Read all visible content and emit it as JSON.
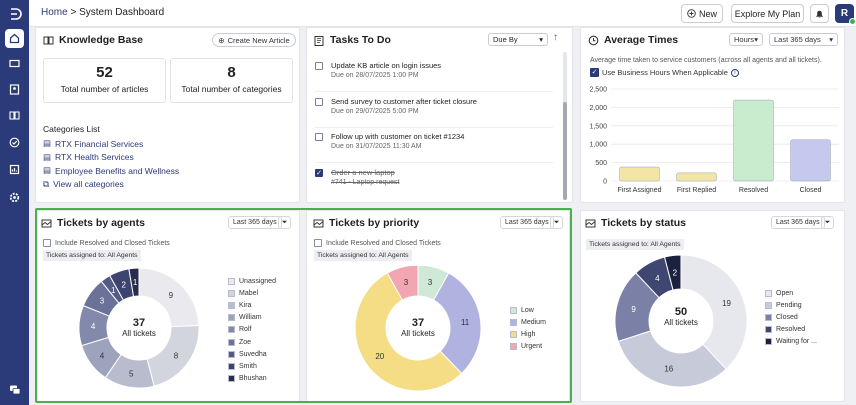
{
  "breadcrumb": {
    "home": "Home",
    "sep": " > ",
    "current": "System Dashboard"
  },
  "header": {
    "new_label": "New",
    "plan_label": "Explore My Plan",
    "avatar_initial": "R"
  },
  "sidebar": {
    "icons": [
      "logo-icon",
      "home-icon",
      "tickets-icon",
      "contacts-icon",
      "knowledge-base-icon",
      "tasks-icon",
      "reports-icon",
      "settings-icon",
      "chat-icon"
    ]
  },
  "knowledge_base": {
    "title": "Knowledge Base",
    "create_label": "Create New Article",
    "articles_count": "52",
    "articles_label": "Total number of articles",
    "categories_count": "8",
    "categories_label": "Total number of categories",
    "categories_heading": "Categories List",
    "categories": [
      "RTX Financial Services",
      "RTX Health Services",
      "Employee Benefits and Wellness"
    ],
    "view_all": "View all categories"
  },
  "tasks": {
    "title": "Tasks To Do",
    "sort_label": "Due By",
    "items": [
      {
        "title": "Update KB article on login issues",
        "due": "Due on 28/07/2025 1:00 PM",
        "done": false
      },
      {
        "title": "Send survey to customer after ticket closure",
        "due": "Due on 29/07/2025 5:00 PM",
        "done": false
      },
      {
        "title": "Follow up with customer on ticket #1234",
        "due": "Due on 31/07/2025 11:30 AM",
        "done": false
      },
      {
        "title": "Order a new laptop",
        "due": "#741 - Laptop request",
        "done": true
      }
    ]
  },
  "average_times": {
    "title": "Average Times",
    "unit_label": "Hours",
    "range_label": "Last 365 days",
    "description": "Average time taken to service customers (across all agents and all tickets).",
    "business_hours_label": "Use Business Hours When Applicable",
    "info_glyph": "i"
  },
  "tickets_by_agents": {
    "title": "Tickets by agents",
    "range_label": "Last 365 days",
    "include_label": "Include Resolved and Closed Tickets",
    "assigned_label": "Tickets assigned to: All Agents",
    "total": "37",
    "total_label": "All tickets",
    "legend": [
      "Unassigned",
      "Mabel",
      "Kira",
      "William",
      "Rolf",
      "Zoe",
      "Suvedha",
      "Smith",
      "Bhushan"
    ]
  },
  "tickets_by_priority": {
    "title": "Tickets by priority",
    "range_label": "Last 365 days",
    "include_label": "Include Resolved and Closed Tickets",
    "assigned_label": "Tickets assigned to: All Agents",
    "total": "37",
    "total_label": "All tickets",
    "legend": [
      "Low",
      "Medium",
      "High",
      "Urgent"
    ]
  },
  "tickets_by_status": {
    "title": "Tickets by status",
    "range_label": "Last 365 days",
    "assigned_label": "Tickets assigned to: All Agents",
    "total": "50",
    "total_label": "All tickets",
    "legend": [
      "Open",
      "Pending",
      "Closed",
      "Resolved",
      "Waiting for ..."
    ]
  },
  "chart_data": [
    {
      "type": "bar",
      "title": "Average Times",
      "categories": [
        "First Assigned",
        "First Replied",
        "Resolved",
        "Closed"
      ],
      "values": [
        380,
        220,
        2200,
        1120
      ],
      "colors": [
        "#f2e5a6",
        "#f2e5a6",
        "#c8eccd",
        "#c6c9ee"
      ],
      "ylim": [
        0,
        2500
      ],
      "yticks": [
        "0",
        "500",
        "1,000",
        "1,500",
        "2,000",
        "2,500"
      ],
      "grid": true
    },
    {
      "type": "pie",
      "title": "Tickets by agents",
      "categories": [
        "Unassigned",
        "Mabel",
        "Kira",
        "William",
        "Rolf",
        "Zoe",
        "Suvedha",
        "Smith",
        "Bhushan"
      ],
      "values": [
        9,
        8,
        5,
        4,
        4,
        3,
        1,
        2,
        1
      ],
      "colors": [
        "#e9e9ee",
        "#d3d5de",
        "#b9bccd",
        "#9ea3bd",
        "#8389ab",
        "#6b7199",
        "#535a85",
        "#3d446f",
        "#272d4a"
      ]
    },
    {
      "type": "pie",
      "title": "Tickets by priority",
      "categories": [
        "Low",
        "Medium",
        "High",
        "Urgent"
      ],
      "values": [
        3,
        11,
        20,
        3
      ],
      "colors": [
        "#cfe9d6",
        "#b0b3e0",
        "#f4dd84",
        "#f1a6b2"
      ]
    },
    {
      "type": "pie",
      "title": "Tickets by status",
      "categories": [
        "Open",
        "Pending",
        "Closed",
        "Resolved",
        "Waiting for ..."
      ],
      "values": [
        19,
        16,
        9,
        4,
        2
      ],
      "colors": [
        "#e7e8ed",
        "#c7cad8",
        "#7b81a6",
        "#3f4670",
        "#1d2140"
      ]
    }
  ]
}
